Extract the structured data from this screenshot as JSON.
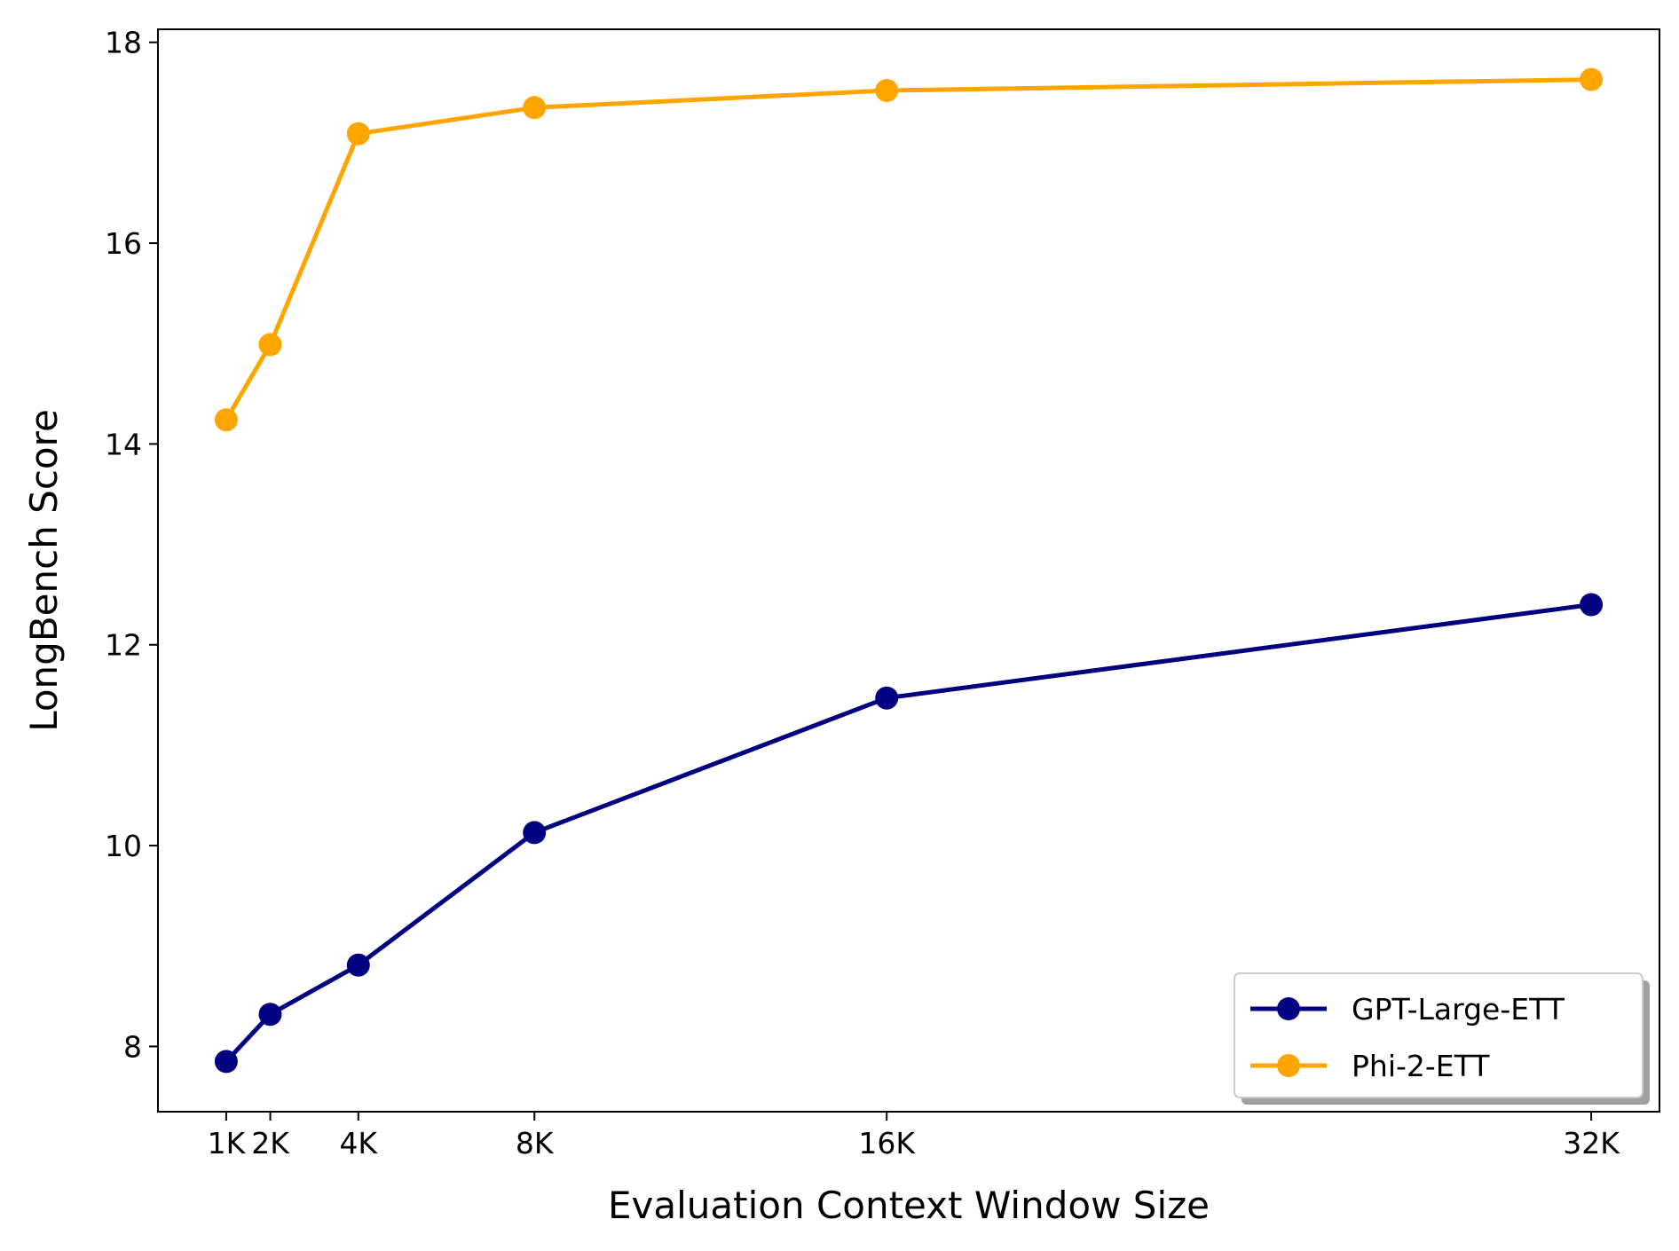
{
  "chart_data": {
    "type": "line",
    "title": "",
    "xlabel": "Evaluation Context Window Size",
    "ylabel": "LongBench Score",
    "x": [
      1,
      2,
      4,
      8,
      16,
      32
    ],
    "x_tick_labels": [
      "1K",
      "2K",
      "4K",
      "8K",
      "16K",
      "32K"
    ],
    "xlim": [
      -0.55,
      33.55
    ],
    "ylim": [
      7.35,
      18.13
    ],
    "y_ticks": [
      8,
      10,
      12,
      14,
      16,
      18
    ],
    "grid": false,
    "legend_position": "lower-right",
    "series": [
      {
        "name": "GPT-Large-ETT",
        "color": "#000080",
        "marker": "circle",
        "values": [
          7.85,
          8.32,
          8.81,
          10.13,
          11.47,
          12.4
        ]
      },
      {
        "name": "Phi-2-ETT",
        "color": "#FFA500",
        "marker": "circle",
        "values": [
          14.24,
          14.99,
          17.09,
          17.35,
          17.52,
          17.63
        ]
      }
    ]
  }
}
